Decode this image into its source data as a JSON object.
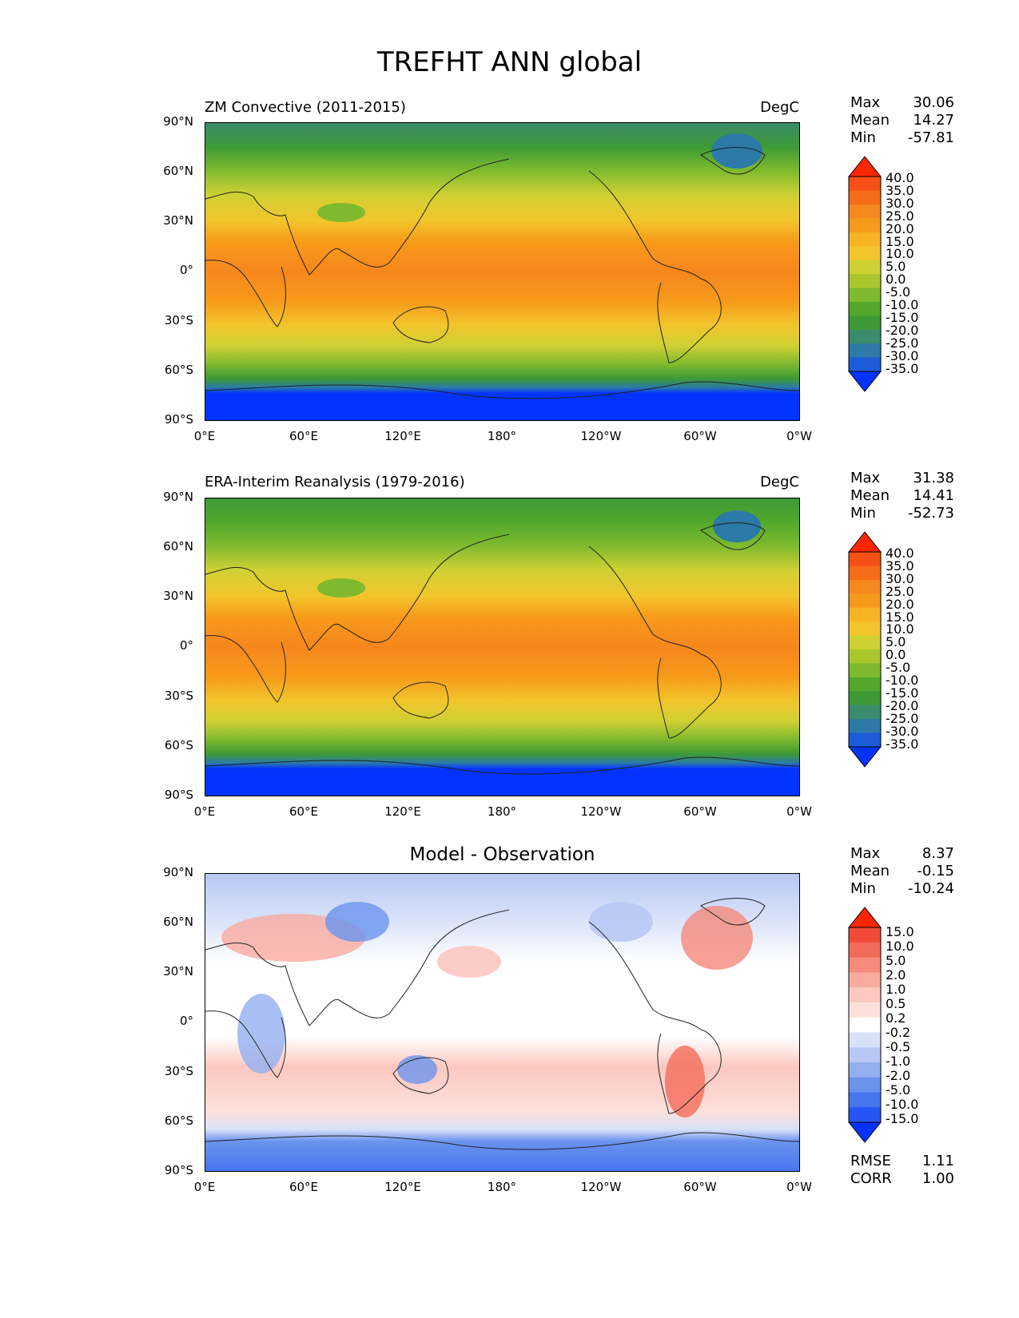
{
  "figure": {
    "title": "TREFHT ANN global"
  },
  "axes": {
    "lat_labels": [
      "90°N",
      "60°N",
      "30°N",
      "0°",
      "30°S",
      "60°S",
      "90°S"
    ],
    "lon_labels": [
      "0°E",
      "60°E",
      "120°E",
      "180°",
      "120°W",
      "60°W",
      "0°W"
    ]
  },
  "colors": {
    "temp_scale": [
      "#0433ff",
      "#1c5cd8",
      "#2c7aa8",
      "#3a8c6c",
      "#3d9a36",
      "#52a82c",
      "#7fba2e",
      "#a9c72d",
      "#cfd034",
      "#f2c52b",
      "#f8b324",
      "#f79a1b",
      "#f6871c",
      "#f76a18",
      "#f84f16",
      "#ff2600"
    ],
    "diff_scale": [
      "#0433ff",
      "#2556f5",
      "#4676ee",
      "#6b93ee",
      "#94aff0",
      "#b8c8f4",
      "#d8e1f8",
      "#ffffff",
      "#fde0dc",
      "#fcc8c0",
      "#f9aba0",
      "#f58a7c",
      "#f26b5a",
      "#ef4b38",
      "#ff2600"
    ]
  },
  "panels": [
    {
      "title": "ZM Convective (2011-2015)",
      "units": "DegC",
      "stats": [
        {
          "label": "Max",
          "value": "30.06"
        },
        {
          "label": "Mean",
          "value": "14.27"
        },
        {
          "label": "Min",
          "value": "-57.81"
        }
      ],
      "colorbar_labels": [
        "40.0",
        "35.0",
        "30.0",
        "25.0",
        "20.0",
        "15.0",
        "10.0",
        "5.0",
        "0.0",
        "-5.0",
        "-10.0",
        "-15.0",
        "-20.0",
        "-25.0",
        "-30.0",
        "-35.0"
      ]
    },
    {
      "title": "ERA-Interim Reanalysis (1979-2016)",
      "units": "DegC",
      "stats": [
        {
          "label": "Max",
          "value": "31.38"
        },
        {
          "label": "Mean",
          "value": "14.41"
        },
        {
          "label": "Min",
          "value": "-52.73"
        }
      ],
      "colorbar_labels": [
        "40.0",
        "35.0",
        "30.0",
        "25.0",
        "20.0",
        "15.0",
        "10.0",
        "5.0",
        "0.0",
        "-5.0",
        "-10.0",
        "-15.0",
        "-20.0",
        "-25.0",
        "-30.0",
        "-35.0"
      ]
    },
    {
      "title": "Model - Observation",
      "units": "",
      "stats": [
        {
          "label": "Max",
          "value": "8.37"
        },
        {
          "label": "Mean",
          "value": "-0.15"
        },
        {
          "label": "Min",
          "value": "-10.24"
        }
      ],
      "colorbar_labels": [
        "15.0",
        "10.0",
        "5.0",
        "2.0",
        "1.0",
        "0.5",
        "0.2",
        "-0.2",
        "-0.5",
        "-1.0",
        "-2.0",
        "-5.0",
        "-10.0",
        "-15.0"
      ],
      "metrics": [
        {
          "label": "RMSE",
          "value": "1.11"
        },
        {
          "label": "CORR",
          "value": "1.00"
        }
      ]
    }
  ]
}
